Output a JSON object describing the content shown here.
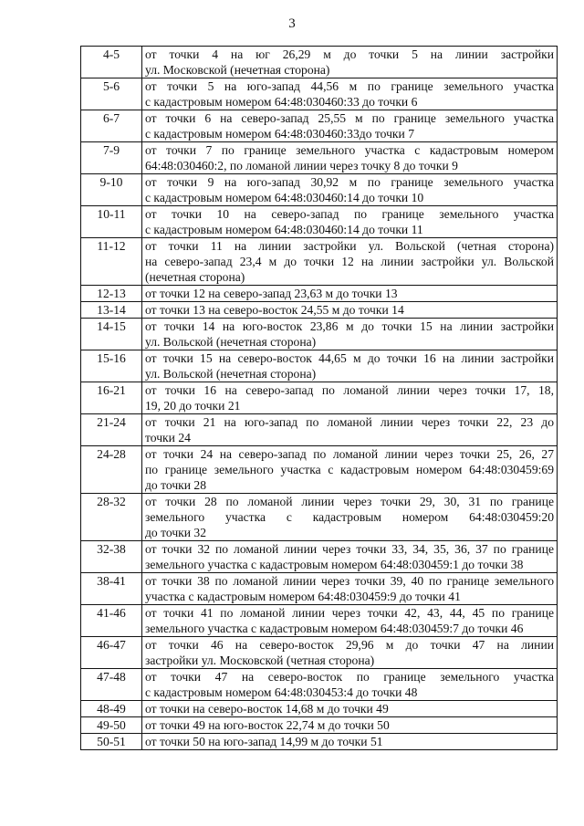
{
  "page_number": "3",
  "table": {
    "rows": [
      {
        "segment": "4-5",
        "lines": [
          "от точки 4 на юг 26,29 м до точки 5 на линии застройки",
          "ул. Московской (нечетная сторона)"
        ]
      },
      {
        "segment": "5-6",
        "lines": [
          "от точки 5 на юго-запад 44,56 м по границе земельного участка",
          "с кадастровым номером 64:48:030460:33 до точки 6"
        ]
      },
      {
        "segment": "6-7",
        "lines": [
          "от точки 6 на северо-запад 25,55 м по границе земельного участка",
          "с кадастровым номером 64:48:030460:33до точки 7"
        ]
      },
      {
        "segment": "7-9",
        "lines": [
          "от точки 7 по границе земельного участка с кадастровым номером",
          "64:48:030460:2, по ломаной линии через точку 8 до точки 9"
        ]
      },
      {
        "segment": "9-10",
        "lines": [
          "от точки 9 на юго-запад 30,92 м по границе земельного участка",
          "с кадастровым номером 64:48:030460:14 до точки 10"
        ]
      },
      {
        "segment": "10-11",
        "lines": [
          "от точки 10 на северо-запад по границе земельного участка",
          "с кадастровым номером 64:48:030460:14 до точки 11"
        ]
      },
      {
        "segment": "11-12",
        "lines": [
          "от точки 11 на линии застройки ул. Вольской (четная сторона)",
          "на северо-запад 23,4 м до точки 12 на линии застройки ул. Вольской",
          "(нечетная сторона)"
        ]
      },
      {
        "segment": "12-13",
        "lines": [
          "от точки 12 на северо-запад 23,63 м до точки 13"
        ]
      },
      {
        "segment": "13-14",
        "lines": [
          "от точки 13 на северо-восток 24,55 м до точки 14"
        ]
      },
      {
        "segment": "14-15",
        "lines": [
          "от точки 14 на юго-восток 23,86 м до точки 15 на линии застройки",
          "ул. Вольской (нечетная сторона)"
        ]
      },
      {
        "segment": "15-16",
        "lines": [
          "от точки 15 на северо-восток 44,65 м до точки 16 на линии застройки",
          "ул. Вольской (нечетная сторона)"
        ]
      },
      {
        "segment": "16-21",
        "lines": [
          "от точки 16 на северо-запад по ломаной линии через точки 17, 18,",
          "19, 20 до точки 21"
        ]
      },
      {
        "segment": "21-24",
        "lines": [
          "от точки 21 на юго-запад по ломаной линии через точки 22, 23 до",
          "точки 24"
        ]
      },
      {
        "segment": "24-28",
        "lines": [
          "от точки 24 на северо-запад по ломаной линии через точки 25, 26, 27",
          "по границе земельного участка с кадастровым номером 64:48:030459:69",
          "до точки 28"
        ]
      },
      {
        "segment": "28-32",
        "lines": [
          "от точки 28 по ломаной линии через точки 29, 30, 31 по границе",
          "земельного участка с кадастровым номером 64:48:030459:20",
          "до точки 32"
        ]
      },
      {
        "segment": "32-38",
        "lines": [
          "от точки 32 по ломаной линии через точки 33, 34, 35, 36, 37 по границе",
          "земельного участка с кадастровым номером 64:48:030459:1 до точки 38"
        ]
      },
      {
        "segment": "38-41",
        "lines": [
          "от точки 38 по ломаной линии через точки 39, 40 по границе земельного",
          "участка с кадастровым номером 64:48:030459:9 до точки 41"
        ]
      },
      {
        "segment": "41-46",
        "lines": [
          "от точки 41 по ломаной линии через точки 42, 43, 44, 45 по границе",
          "земельного участка с кадастровым номером 64:48:030459:7 до точки 46"
        ]
      },
      {
        "segment": "46-47",
        "lines": [
          "от точки 46 на северо-восток 29,96 м до точки 47 на линии",
          "застройки ул. Московской (четная сторона)"
        ]
      },
      {
        "segment": "47-48",
        "lines": [
          "от точки 47 на северо-восток по границе земельного участка",
          "с кадастровым номером 64:48:030453:4 до точки 48"
        ]
      },
      {
        "segment": "48-49",
        "lines": [
          "от точки на северо-восток 14,68 м до точки 49"
        ]
      },
      {
        "segment": "49-50",
        "lines": [
          "от точки 49 на юго-восток 22,74 м до точки 50"
        ]
      },
      {
        "segment": "50-51",
        "lines": [
          "от точки 50 на юго-запад 14,99 м до точки 51"
        ]
      }
    ]
  }
}
